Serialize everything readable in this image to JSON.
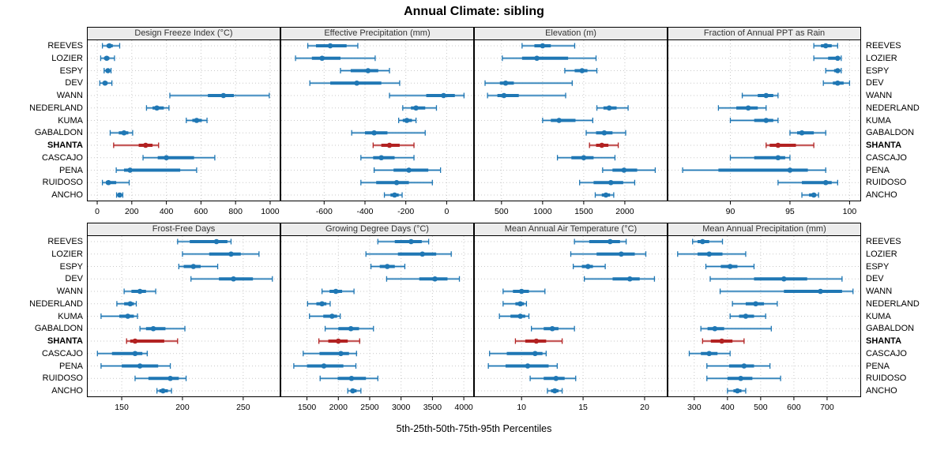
{
  "chart_data": {
    "type": "dotplot-percentiles",
    "title": "Annual Climate: sibling",
    "caption": "5th-25th-50th-75th-95th Percentiles",
    "legend": "each row shows 5th-25th-50th-75th-95th percentile whisker/box/dot",
    "stations": [
      "REEVES",
      "LOZIER",
      "ESPY",
      "DEV",
      "WANN",
      "NEDERLAND",
      "KUMA",
      "GABALDON",
      "SHANTA",
      "CASCAJO",
      "PENA",
      "RUIDOSO",
      "ANCHO"
    ],
    "highlight_station": "SHANTA",
    "colors": {
      "normal": "#1f77b4",
      "highlight": "#b22222",
      "grid": "#c9c9c9",
      "strip_bg": "#ececec",
      "border": "#000000"
    },
    "layout": {
      "rows": 2,
      "cols": 4,
      "grid": true,
      "x_axis_position": "bottom of each panel"
    },
    "panels": [
      {
        "title": "Design Freeze Index (°C)",
        "xlim": [
          -55,
          1055
        ],
        "ticks": [
          0,
          200,
          400,
          600,
          800,
          1000
        ],
        "values": [
          [
            30,
            55,
            70,
            90,
            130
          ],
          [
            20,
            40,
            55,
            70,
            100
          ],
          [
            40,
            55,
            62,
            70,
            80
          ],
          [
            15,
            35,
            45,
            60,
            85
          ],
          [
            420,
            640,
            730,
            790,
            995
          ],
          [
            285,
            320,
            345,
            385,
            415
          ],
          [
            515,
            550,
            575,
            605,
            635
          ],
          [
            75,
            125,
            155,
            180,
            205
          ],
          [
            95,
            240,
            280,
            320,
            355
          ],
          [
            265,
            350,
            400,
            560,
            680
          ],
          [
            110,
            155,
            190,
            480,
            575
          ],
          [
            30,
            50,
            65,
            110,
            185
          ],
          [
            112,
            122,
            130,
            140,
            148
          ]
        ]
      },
      {
        "title": "Effective Precipitation (mm)",
        "xlim": [
          -810,
          130
        ],
        "ticks": [
          -600,
          -400,
          -200,
          0
        ],
        "values": [
          [
            -680,
            -640,
            -570,
            -490,
            -435
          ],
          [
            -740,
            -660,
            -610,
            -520,
            -350
          ],
          [
            -520,
            -470,
            -385,
            -335,
            -280
          ],
          [
            -670,
            -570,
            -440,
            -320,
            -230
          ],
          [
            -280,
            -100,
            -15,
            40,
            85
          ],
          [
            -215,
            -175,
            -150,
            -105,
            -50
          ],
          [
            -235,
            -215,
            -195,
            -170,
            -150
          ],
          [
            -465,
            -400,
            -355,
            -290,
            -105
          ],
          [
            -360,
            -320,
            -280,
            -230,
            -160
          ],
          [
            -420,
            -360,
            -320,
            -255,
            -160
          ],
          [
            -355,
            -260,
            -185,
            -90,
            -30
          ],
          [
            -420,
            -345,
            -245,
            -185,
            -70
          ],
          [
            -305,
            -275,
            -255,
            -235,
            -218
          ]
        ]
      },
      {
        "title": "Elevation (m)",
        "xlim": [
          175,
          2510
        ],
        "ticks": [
          500,
          1000,
          1500,
          2000
        ],
        "values": [
          [
            750,
            900,
            1000,
            1100,
            1390
          ],
          [
            510,
            750,
            930,
            1310,
            1650
          ],
          [
            1270,
            1390,
            1480,
            1545,
            1660
          ],
          [
            300,
            480,
            550,
            650,
            1360
          ],
          [
            330,
            450,
            530,
            710,
            1280
          ],
          [
            1660,
            1740,
            1810,
            1900,
            2040
          ],
          [
            1000,
            1100,
            1200,
            1400,
            1610
          ],
          [
            1530,
            1650,
            1750,
            1850,
            2010
          ],
          [
            1570,
            1650,
            1720,
            1800,
            1920
          ],
          [
            1180,
            1350,
            1500,
            1620,
            1880
          ],
          [
            1730,
            1850,
            1990,
            2150,
            2370
          ],
          [
            1450,
            1620,
            1830,
            1980,
            2120
          ],
          [
            1640,
            1720,
            1770,
            1820,
            1865
          ]
        ]
      },
      {
        "title": "Fraction of Annual PPT as Rain",
        "xlim": [
          84.8,
          100.9
        ],
        "ticks": [
          90,
          95,
          100
        ],
        "values": [
          [
            97,
            97.6,
            98,
            98.5,
            99
          ],
          [
            97,
            98.2,
            99,
            99.2,
            99.3
          ],
          [
            98,
            98.7,
            99,
            99.2,
            99.3
          ],
          [
            97.8,
            98.6,
            99,
            99.5,
            100
          ],
          [
            91,
            92.3,
            93,
            93.6,
            94
          ],
          [
            89,
            90.5,
            91.5,
            92.3,
            93
          ],
          [
            90,
            92,
            93,
            93.6,
            94
          ],
          [
            95,
            95.6,
            96,
            97,
            98
          ],
          [
            93,
            93.3,
            94,
            95.5,
            97
          ],
          [
            90,
            92,
            94,
            94.6,
            95
          ],
          [
            86,
            89,
            95,
            96.5,
            98
          ],
          [
            94,
            96,
            98,
            98.5,
            99
          ],
          [
            96,
            96.6,
            97,
            97.2,
            97.4
          ]
        ]
      },
      {
        "title": "Frost-Free Days",
        "xlim": [
          122,
          280
        ],
        "ticks": [
          150,
          200,
          250
        ],
        "values": [
          [
            196,
            206,
            228,
            237,
            240
          ],
          [
            200,
            222,
            240,
            248,
            263
          ],
          [
            197,
            201,
            209,
            215,
            229
          ],
          [
            207,
            230,
            242,
            258,
            274
          ],
          [
            152,
            158,
            165,
            170,
            178
          ],
          [
            146,
            152,
            157,
            160,
            162
          ],
          [
            133,
            148,
            155,
            160,
            163
          ],
          [
            165,
            170,
            176,
            186,
            202
          ],
          [
            154,
            157,
            161,
            185,
            196
          ],
          [
            130,
            142,
            161,
            167,
            171
          ],
          [
            133,
            150,
            165,
            180,
            190
          ],
          [
            161,
            172,
            190,
            197,
            203
          ],
          [
            179,
            181,
            184,
            188,
            191
          ]
        ]
      },
      {
        "title": "Growing Degree Days (°C)",
        "xlim": [
          1090,
          4150
        ],
        "ticks": [
          1500,
          2000,
          2500,
          3000,
          3500,
          4000
        ],
        "values": [
          [
            2630,
            2900,
            3160,
            3330,
            3440
          ],
          [
            2440,
            2950,
            3340,
            3560,
            3800
          ],
          [
            2520,
            2660,
            2780,
            2900,
            3060
          ],
          [
            2770,
            3290,
            3540,
            3740,
            3930
          ],
          [
            1740,
            1860,
            1960,
            2060,
            2250
          ],
          [
            1510,
            1650,
            1740,
            1810,
            1870
          ],
          [
            1540,
            1760,
            1900,
            1980,
            2030
          ],
          [
            1790,
            2000,
            2200,
            2330,
            2560
          ],
          [
            1690,
            1840,
            2000,
            2150,
            2340
          ],
          [
            1440,
            1700,
            2040,
            2170,
            2290
          ],
          [
            1290,
            1500,
            1770,
            2080,
            2280
          ],
          [
            1710,
            1990,
            2210,
            2440,
            2630
          ],
          [
            2150,
            2200,
            2230,
            2290,
            2360
          ]
        ]
      },
      {
        "title": "Mean Annual Air Temperature (°C)",
        "xlim": [
          6.2,
          21.8
        ],
        "ticks": [
          10,
          15,
          20
        ],
        "values": [
          [
            14.3,
            15.5,
            17.2,
            18.0,
            18.5
          ],
          [
            14.0,
            16.1,
            18.1,
            19.2,
            20.1
          ],
          [
            14.2,
            14.9,
            15.4,
            15.8,
            16.8
          ],
          [
            15.1,
            17.4,
            18.8,
            19.6,
            20.8
          ],
          [
            8.5,
            9.3,
            10.0,
            10.6,
            11.9
          ],
          [
            8.5,
            9.5,
            9.9,
            10.2,
            10.4
          ],
          [
            8.2,
            9.1,
            9.9,
            10.3,
            10.6
          ],
          [
            10.8,
            11.8,
            12.5,
            13.0,
            14.3
          ],
          [
            9.5,
            10.3,
            11.2,
            12.0,
            13.3
          ],
          [
            7.4,
            8.8,
            11.1,
            11.7,
            12.0
          ],
          [
            7.3,
            8.7,
            10.5,
            12.2,
            12.9
          ],
          [
            10.7,
            11.8,
            12.8,
            13.5,
            14.4
          ],
          [
            12.1,
            12.4,
            12.7,
            13.0,
            13.3
          ]
        ]
      },
      {
        "title": "Mean Annual Precipitation (mm)",
        "xlim": [
          222,
          800
        ],
        "ticks": [
          300,
          400,
          500,
          600,
          700
        ],
        "values": [
          [
            295,
            310,
            325,
            345,
            385
          ],
          [
            250,
            310,
            345,
            385,
            455
          ],
          [
            335,
            380,
            408,
            430,
            480
          ],
          [
            348,
            480,
            570,
            640,
            745
          ],
          [
            378,
            570,
            680,
            745,
            778
          ],
          [
            415,
            455,
            485,
            510,
            550
          ],
          [
            408,
            435,
            455,
            480,
            515
          ],
          [
            320,
            340,
            362,
            390,
            532
          ],
          [
            325,
            350,
            383,
            415,
            450
          ],
          [
            285,
            320,
            345,
            370,
            408
          ],
          [
            338,
            405,
            450,
            480,
            528
          ],
          [
            338,
            400,
            440,
            475,
            560
          ],
          [
            400,
            418,
            430,
            442,
            455
          ]
        ]
      }
    ]
  }
}
